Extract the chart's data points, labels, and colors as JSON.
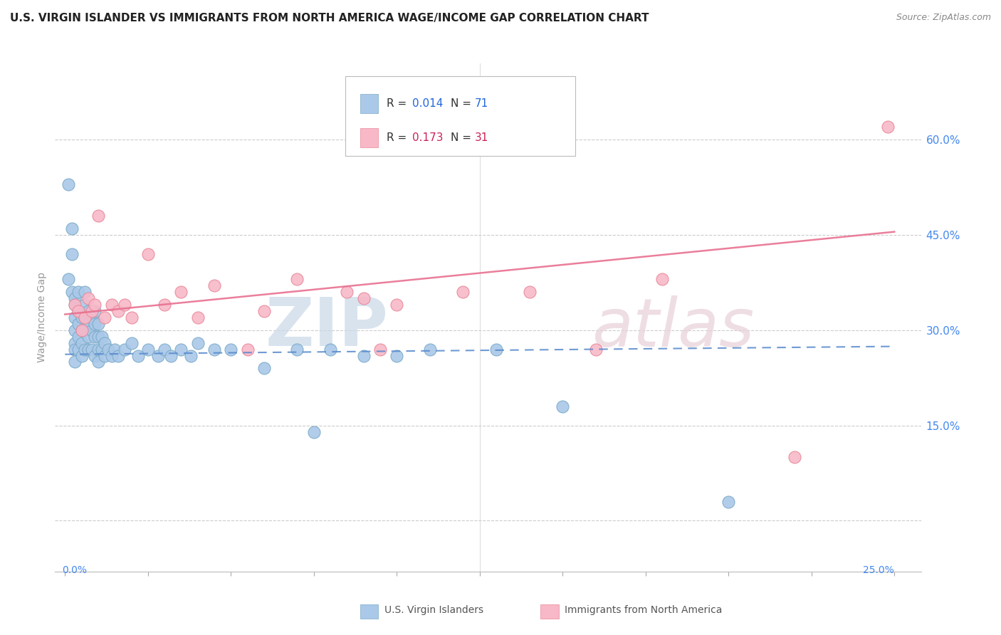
{
  "title": "U.S. VIRGIN ISLANDER VS IMMIGRANTS FROM NORTH AMERICA WAGE/INCOME GAP CORRELATION CHART",
  "source": "Source: ZipAtlas.com",
  "ylabel": "Wage/Income Gap",
  "xlim": [
    -0.003,
    0.258
  ],
  "ylim": [
    -0.08,
    0.72
  ],
  "ytick_vals": [
    0.0,
    0.15,
    0.3,
    0.45,
    0.6
  ],
  "ytick_labels": [
    "",
    "15.0%",
    "30.0%",
    "45.0%",
    "60.0%"
  ],
  "blue_color": "#aac8e8",
  "blue_edge_color": "#7aaac8",
  "pink_color": "#f8b8c8",
  "pink_edge_color": "#e88898",
  "blue_line_color": "#5588cc",
  "pink_line_color": "#e87090",
  "title_color": "#222222",
  "source_color": "#888888",
  "axis_color": "#cccccc",
  "tick_label_color": "#4488ee",
  "watermark_color": "#d8e4f0",
  "watermark_pink_color": "#f0d8e0",
  "blue_x": [
    0.001,
    0.001,
    0.002,
    0.002,
    0.002,
    0.003,
    0.003,
    0.003,
    0.003,
    0.003,
    0.003,
    0.003,
    0.004,
    0.004,
    0.004,
    0.004,
    0.004,
    0.005,
    0.005,
    0.005,
    0.005,
    0.006,
    0.006,
    0.006,
    0.006,
    0.006,
    0.007,
    0.007,
    0.007,
    0.007,
    0.008,
    0.008,
    0.008,
    0.009,
    0.009,
    0.009,
    0.009,
    0.01,
    0.01,
    0.01,
    0.01,
    0.011,
    0.011,
    0.012,
    0.012,
    0.013,
    0.014,
    0.015,
    0.016,
    0.018,
    0.02,
    0.022,
    0.025,
    0.028,
    0.03,
    0.032,
    0.035,
    0.038,
    0.04,
    0.045,
    0.05,
    0.06,
    0.07,
    0.075,
    0.08,
    0.09,
    0.1,
    0.11,
    0.13,
    0.15,
    0.2
  ],
  "blue_y": [
    0.53,
    0.38,
    0.46,
    0.42,
    0.36,
    0.35,
    0.34,
    0.32,
    0.3,
    0.28,
    0.27,
    0.25,
    0.36,
    0.33,
    0.31,
    0.29,
    0.27,
    0.32,
    0.3,
    0.28,
    0.26,
    0.36,
    0.34,
    0.32,
    0.3,
    0.27,
    0.33,
    0.31,
    0.29,
    0.27,
    0.32,
    0.3,
    0.27,
    0.33,
    0.31,
    0.29,
    0.26,
    0.31,
    0.29,
    0.27,
    0.25,
    0.29,
    0.27,
    0.28,
    0.26,
    0.27,
    0.26,
    0.27,
    0.26,
    0.27,
    0.28,
    0.26,
    0.27,
    0.26,
    0.27,
    0.26,
    0.27,
    0.26,
    0.28,
    0.27,
    0.27,
    0.24,
    0.27,
    0.14,
    0.27,
    0.26,
    0.26,
    0.27,
    0.27,
    0.18,
    0.03
  ],
  "pink_x": [
    0.003,
    0.004,
    0.005,
    0.006,
    0.007,
    0.008,
    0.009,
    0.01,
    0.012,
    0.014,
    0.016,
    0.018,
    0.02,
    0.025,
    0.03,
    0.035,
    0.04,
    0.045,
    0.055,
    0.06,
    0.07,
    0.085,
    0.09,
    0.095,
    0.1,
    0.12,
    0.14,
    0.16,
    0.18,
    0.22,
    0.248
  ],
  "pink_y": [
    0.34,
    0.33,
    0.3,
    0.32,
    0.35,
    0.33,
    0.34,
    0.48,
    0.32,
    0.34,
    0.33,
    0.34,
    0.32,
    0.42,
    0.34,
    0.36,
    0.32,
    0.37,
    0.27,
    0.33,
    0.38,
    0.36,
    0.35,
    0.27,
    0.34,
    0.36,
    0.36,
    0.27,
    0.38,
    0.1,
    0.62
  ]
}
